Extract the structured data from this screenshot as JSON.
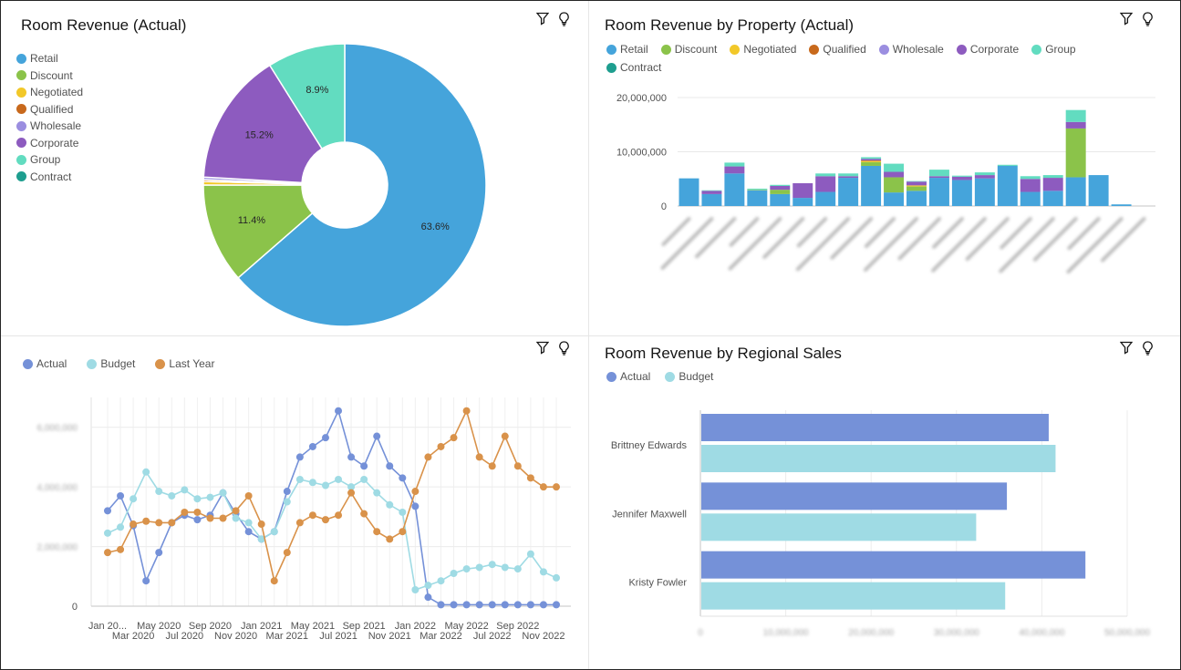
{
  "toolbar": {
    "filter_icon": "filter-icon",
    "insight_icon": "lightbulb-icon"
  },
  "panels": {
    "room_revenue_actual": {
      "title": "Room Revenue (Actual)",
      "legend": [
        "Retail",
        "Discount",
        "Negotiated",
        "Qualified",
        "Wholesale",
        "Corporate",
        "Group",
        "Contract"
      ]
    },
    "by_property": {
      "title": "Room Revenue by Property (Actual)",
      "legend": [
        "Retail",
        "Discount",
        "Negotiated",
        "Qualified",
        "Wholesale",
        "Corporate",
        "Group",
        "Contract"
      ]
    },
    "trend": {
      "title": "",
      "legend": [
        "Actual",
        "Budget",
        "Last Year"
      ]
    },
    "regional": {
      "title": "Room Revenue by Regional Sales",
      "legend": [
        "Actual",
        "Budget"
      ]
    }
  },
  "colors": {
    "retail": "#45a4db",
    "discount": "#8bc34a",
    "negotiated": "#f2c829",
    "qualified": "#c8691c",
    "wholesale": "#9b8ee0",
    "corporate": "#8d5bbf",
    "group": "#62dcc0",
    "contract": "#1e9e8f",
    "actual": "#7591d8",
    "budget": "#9fdbe4",
    "last_year": "#d9924a"
  },
  "chart_data": [
    {
      "type": "pie",
      "title": "Room Revenue (Actual)",
      "labels": [
        "Retail",
        "Discount",
        "Negotiated",
        "Qualified",
        "Wholesale",
        "Corporate",
        "Group",
        "Contract"
      ],
      "values": [
        63.6,
        11.4,
        0.4,
        0.2,
        0.3,
        15.2,
        8.9,
        0.0
      ],
      "data_labels": [
        "63.6%",
        "11.4%",
        "",
        "",
        "",
        "15.2%",
        "8.9%",
        ""
      ],
      "donut": true
    },
    {
      "type": "bar",
      "stacked": true,
      "title": "Room Revenue by Property (Actual)",
      "ylim": [
        0,
        20000000
      ],
      "ticks": [
        "0",
        "10,000,000",
        "20,000,000"
      ],
      "tick_values": [
        0,
        10000000,
        20000000
      ],
      "category_count": 21,
      "series": [
        {
          "name": "Retail",
          "values": [
            5100000,
            2200000,
            6000000,
            2900000,
            2200000,
            1500000,
            2600000,
            5200000,
            7400000,
            2500000,
            2800000,
            5200000,
            4800000,
            5100000,
            7400000,
            2600000,
            2800000,
            5300000,
            5700000,
            300000,
            0
          ]
        },
        {
          "name": "Discount",
          "values": [
            0,
            0,
            0,
            100000,
            800000,
            0,
            0,
            0,
            700000,
            2800000,
            800000,
            0,
            0,
            0,
            0,
            0,
            0,
            9000000,
            0,
            0,
            0
          ]
        },
        {
          "name": "Negotiated",
          "values": [
            0,
            0,
            0,
            0,
            0,
            0,
            0,
            0,
            200000,
            0,
            200000,
            0,
            0,
            0,
            0,
            0,
            0,
            0,
            0,
            0,
            0
          ]
        },
        {
          "name": "Qualified",
          "values": [
            0,
            0,
            0,
            0,
            0,
            0,
            0,
            0,
            100000,
            0,
            0,
            0,
            0,
            0,
            0,
            0,
            0,
            0,
            0,
            0,
            0
          ]
        },
        {
          "name": "Wholesale",
          "values": [
            0,
            0,
            0,
            0,
            0,
            0,
            0,
            0,
            0,
            0,
            0,
            0,
            0,
            0,
            0,
            0,
            0,
            0,
            0,
            0,
            0
          ]
        },
        {
          "name": "Corporate",
          "values": [
            0,
            600000,
            1300000,
            0,
            700000,
            2700000,
            2900000,
            300000,
            300000,
            1000000,
            700000,
            300000,
            600000,
            600000,
            0,
            2400000,
            2400000,
            1200000,
            0,
            0,
            0
          ]
        },
        {
          "name": "Group",
          "values": [
            0,
            100000,
            700000,
            200000,
            200000,
            0,
            500000,
            500000,
            300000,
            1500000,
            100000,
            1200000,
            200000,
            500000,
            200000,
            500000,
            500000,
            2200000,
            0,
            0,
            0
          ]
        },
        {
          "name": "Contract",
          "values": [
            0,
            0,
            0,
            0,
            0,
            0,
            0,
            0,
            0,
            0,
            0,
            0,
            0,
            0,
            0,
            0,
            0,
            0,
            0,
            0,
            0
          ]
        }
      ]
    },
    {
      "type": "line",
      "title": "",
      "x_labels": [
        "Jan 20...",
        "Mar 2020",
        "May 2020",
        "Jul 2020",
        "Sep 2020",
        "Nov 2020",
        "Jan 2021",
        "Mar 2021",
        "May 2021",
        "Jul 2021",
        "Sep 2021",
        "Nov 2021",
        "Jan 2022",
        "Mar 2022",
        "May 2022",
        "Jul 2022",
        "Sep 2022",
        "Nov 2022"
      ],
      "ylim": [
        0,
        7000000
      ],
      "ticks": [
        "0",
        "2,000,000",
        "4,000,000",
        "6,000,000"
      ],
      "tick_values": [
        0,
        2000000,
        4000000,
        6000000
      ],
      "series": [
        {
          "name": "Actual",
          "values": [
            3200000,
            3700000,
            2700000,
            850000,
            1800000,
            2800000,
            3050000,
            2900000,
            3050000,
            3800000,
            3100000,
            2500000,
            2250000,
            2500000,
            3850000,
            5000000,
            5350000,
            5650000,
            6550000,
            5000000,
            4700000,
            5700000,
            4700000,
            4300000,
            3350000,
            300000,
            50000,
            50000,
            50000,
            50000,
            50000,
            50000,
            50000,
            50000,
            50000,
            50000
          ]
        },
        {
          "name": "Budget",
          "values": [
            2450000,
            2650000,
            3600000,
            4500000,
            3850000,
            3700000,
            3900000,
            3600000,
            3650000,
            3800000,
            2950000,
            2800000,
            2250000,
            2500000,
            3500000,
            4250000,
            4150000,
            4050000,
            4250000,
            4000000,
            4250000,
            3800000,
            3400000,
            3150000,
            550000,
            700000,
            850000,
            1100000,
            1250000,
            1300000,
            1400000,
            1300000,
            1250000,
            1750000,
            1150000,
            950000
          ]
        },
        {
          "name": "Last Year",
          "values": [
            1800000,
            1900000,
            2750000,
            2850000,
            2800000,
            2800000,
            3150000,
            3150000,
            2950000,
            2950000,
            3200000,
            3700000,
            2750000,
            850000,
            1800000,
            2800000,
            3050000,
            2900000,
            3050000,
            3800000,
            3100000,
            2500000,
            2250000,
            2500000,
            3850000,
            5000000,
            5350000,
            5650000,
            6550000,
            5000000,
            4700000,
            5700000,
            4700000,
            4300000,
            4000000,
            4000000
          ]
        }
      ]
    },
    {
      "type": "bar",
      "orientation": "horizontal",
      "title": "Room Revenue by Regional Sales",
      "categories": [
        "Brittney Edwards",
        "Jennifer Maxwell",
        "Kristy Fowler"
      ],
      "xlim": [
        0,
        50000000
      ],
      "ticks": [
        "0",
        "10,000,000",
        "20,000,000",
        "30,000,000",
        "40,000,000",
        "50,000,000"
      ],
      "tick_values": [
        0,
        10000000,
        20000000,
        30000000,
        40000000,
        50000000
      ],
      "series": [
        {
          "name": "Actual",
          "values": [
            40700000,
            35800000,
            45000000
          ]
        },
        {
          "name": "Budget",
          "values": [
            41500000,
            32200000,
            35600000
          ]
        }
      ]
    }
  ]
}
